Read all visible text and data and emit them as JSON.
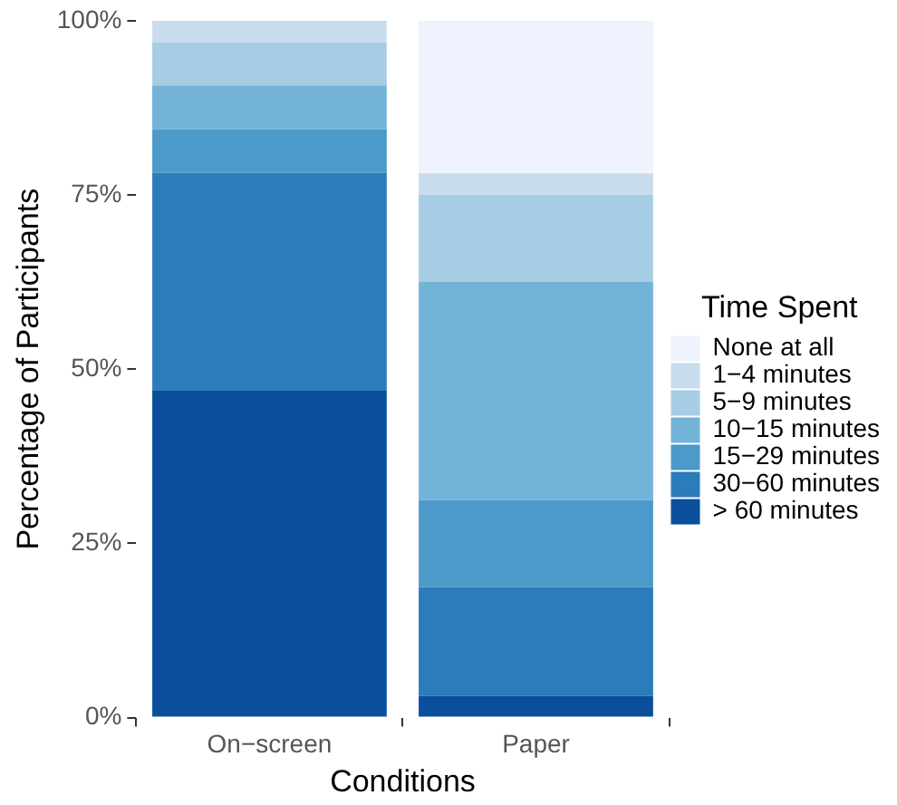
{
  "chart_data": {
    "type": "bar",
    "stacked": true,
    "xlabel": "Conditions",
    "ylabel": "Percentage of Participants",
    "legend_title": "Time Spent",
    "legend": "right",
    "grid": false,
    "categories": [
      "On−screen",
      "Paper"
    ],
    "ylim": [
      0,
      100
    ],
    "yticks": [
      {
        "value": 0,
        "label": "0%"
      },
      {
        "value": 25,
        "label": "25%"
      },
      {
        "value": 50,
        "label": "50%"
      },
      {
        "value": 75,
        "label": "75%"
      },
      {
        "value": 100,
        "label": "100%"
      }
    ],
    "series": [
      {
        "name": "> 60 minutes",
        "color": "#0b4f9c",
        "values": [
          46.9,
          3.1
        ]
      },
      {
        "name": "30−60 minutes",
        "color": "#2c7bbb",
        "values": [
          31.3,
          15.6
        ]
      },
      {
        "name": "15−29 minutes",
        "color": "#4b9ac9",
        "values": [
          6.2,
          12.5
        ]
      },
      {
        "name": "10−15 minutes",
        "color": "#74b3d8",
        "values": [
          6.3,
          31.3
        ]
      },
      {
        "name": "5−9 minutes",
        "color": "#a6cde3",
        "values": [
          6.2,
          12.5
        ]
      },
      {
        "name": "1−4 minutes",
        "color": "#c9dcee",
        "values": [
          3.1,
          3.1
        ]
      },
      {
        "name": "None at all",
        "color": "#eef3fd",
        "values": [
          0,
          21.9
        ]
      }
    ]
  }
}
